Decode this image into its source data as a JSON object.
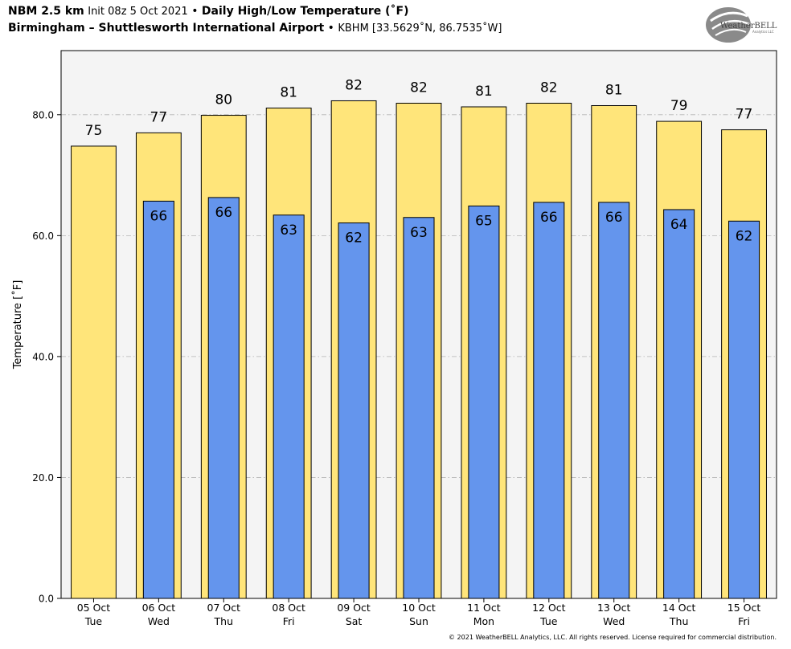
{
  "header": {
    "model": "NBM 2.5 km",
    "init": "Init 08z 5 Oct 2021",
    "sep": "•",
    "product": "Daily High/Low Temperature (˚F)",
    "location": "Birmingham – Shuttlesworth International Airport",
    "station": "KBHM [33.5629˚N, 86.7535˚W]"
  },
  "logo": {
    "text": "WeatherBELL",
    "sub": "Analytics LLC"
  },
  "footer": "© 2021 WeatherBELL Analytics, LLC. All rights reserved. License required for commercial distribution.",
  "colors": {
    "high": "#ffe57a",
    "low": "#6495ed",
    "plot_bg": "#f4f4f4"
  },
  "chart_data": {
    "type": "bar",
    "ylabel": "Temperature [˚F]",
    "ylim": [
      0,
      90.6
    ],
    "yticks": [
      0,
      20,
      40,
      60,
      80
    ],
    "ytick_labels": [
      "0.0",
      "20.0",
      "40.0",
      "60.0",
      "80.0"
    ],
    "grid": true,
    "categories": [
      "05 Oct",
      "06 Oct",
      "07 Oct",
      "08 Oct",
      "09 Oct",
      "10 Oct",
      "11 Oct",
      "12 Oct",
      "13 Oct",
      "14 Oct",
      "15 Oct"
    ],
    "weekdays": [
      "Tue",
      "Wed",
      "Thu",
      "Fri",
      "Sat",
      "Sun",
      "Mon",
      "Tue",
      "Wed",
      "Thu",
      "Fri"
    ],
    "series": [
      {
        "key": "high",
        "values": [
          74.8,
          77.0,
          79.9,
          81.1,
          82.3,
          81.9,
          81.3,
          81.9,
          81.5,
          78.9,
          77.5
        ],
        "labels": [
          "75",
          "77",
          "80",
          "81",
          "82",
          "82",
          "81",
          "82",
          "81",
          "79",
          "77"
        ]
      },
      {
        "key": "low",
        "values": [
          null,
          65.7,
          66.3,
          63.4,
          62.1,
          63.0,
          64.9,
          65.5,
          65.5,
          64.3,
          62.4
        ],
        "labels": [
          "",
          "66",
          "66",
          "63",
          "62",
          "63",
          "65",
          "66",
          "66",
          "64",
          "62"
        ]
      }
    ]
  }
}
